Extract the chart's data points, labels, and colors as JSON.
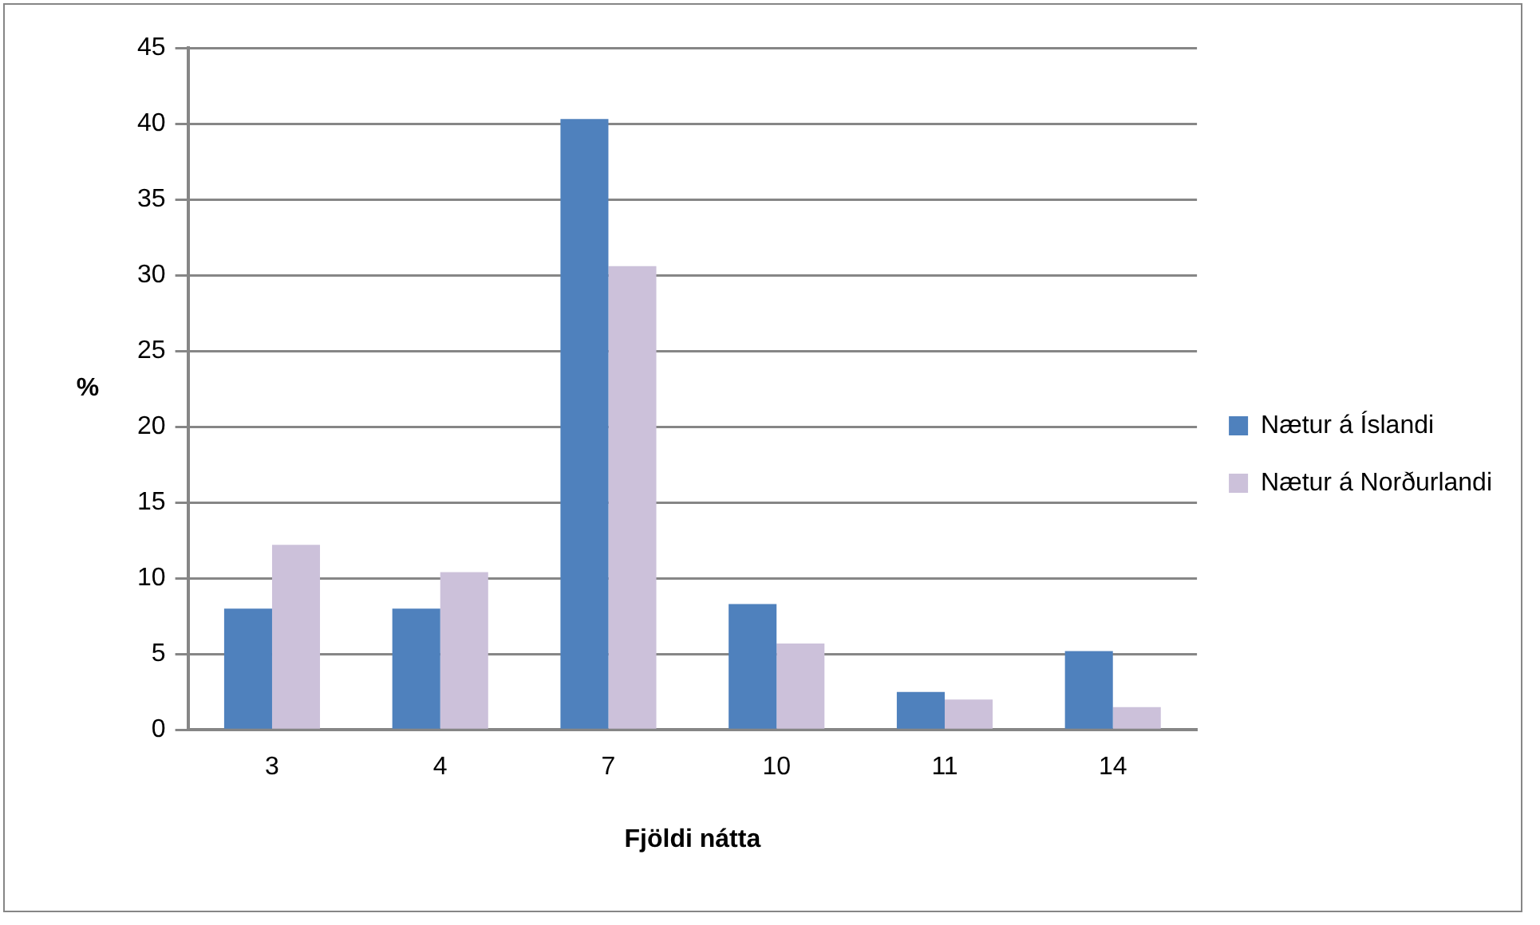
{
  "chart_data": {
    "type": "bar",
    "xlabel": "Fjöldi nátta",
    "ylabel": "%",
    "categories": [
      "3",
      "4",
      "7",
      "10",
      "11",
      "14"
    ],
    "series": [
      {
        "name": "Nætur á Íslandi",
        "color": "#4f81bd",
        "values": [
          8.0,
          8.0,
          40.3,
          8.3,
          2.5,
          5.2
        ]
      },
      {
        "name": "Nætur á Norðurlandi",
        "color": "#ccc1da",
        "values": [
          12.2,
          10.4,
          30.6,
          5.7,
          2.0,
          1.5
        ]
      }
    ],
    "ylim": [
      0,
      45
    ],
    "yticks": [
      0,
      5,
      10,
      15,
      20,
      25,
      30,
      35,
      40,
      45
    ],
    "grid": "y",
    "legend": "right"
  }
}
